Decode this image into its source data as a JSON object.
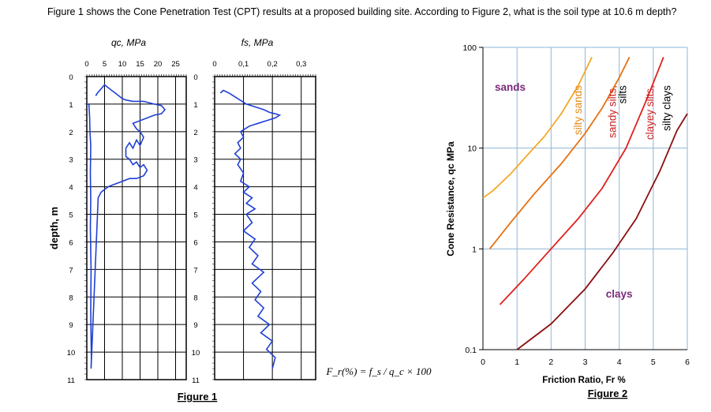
{
  "question": "Figure 1 shows the Cone Penetration Test (CPT) results at a proposed building site. According to Figure 2, what is the soil type at 10.6 m depth?",
  "chart_data": [
    {
      "type": "line",
      "caption": "Figure 1",
      "ylabel": "depth, m",
      "ylim": [
        11,
        0
      ],
      "y_ticks": [
        "0",
        "1",
        "2",
        "3",
        "4",
        "5",
        "6",
        "7",
        "8",
        "9",
        "10",
        "11"
      ],
      "panels": [
        {
          "name": "qc",
          "title": "q_c, MPa",
          "xlim": [
            0,
            28
          ],
          "x_ticks": [
            "0",
            "5",
            "10",
            "15",
            "20",
            "25"
          ],
          "x_tick_values": [
            0,
            5,
            10,
            15,
            20,
            25
          ],
          "profile": [
            [
              0,
              1
            ],
            [
              0.3,
              1
            ],
            [
              0.6,
              1
            ],
            [
              0.8,
              1.5
            ],
            [
              0.9,
              2
            ],
            [
              1.1,
              2.5
            ],
            [
              1.0,
              3.5
            ],
            [
              1.1,
              4.5
            ],
            [
              1.0,
              5.5
            ],
            [
              1.2,
              7
            ],
            [
              1.1,
              8.5
            ],
            [
              1.2,
              9.5
            ],
            [
              1.3,
              10.2
            ],
            [
              1.2,
              10.6
            ],
            [
              3.2,
              4.4
            ],
            [
              4,
              4.2
            ],
            [
              6,
              4
            ],
            [
              8,
              3.9
            ],
            [
              10,
              3.8
            ],
            [
              12,
              3.7
            ],
            [
              14,
              3.7
            ],
            [
              16,
              3.6
            ],
            [
              17,
              3.4
            ],
            [
              16,
              3.2
            ],
            [
              15,
              3.3
            ],
            [
              14,
              3.1
            ],
            [
              13,
              3.2
            ],
            [
              12,
              3.0
            ],
            [
              11,
              2.9
            ],
            [
              11,
              2.6
            ],
            [
              12,
              2.4
            ],
            [
              13,
              2.6
            ],
            [
              14,
              2.3
            ],
            [
              15,
              2.5
            ],
            [
              16,
              2.2
            ],
            [
              15,
              2.0
            ],
            [
              14,
              1.9
            ],
            [
              13,
              1.7
            ],
            [
              15,
              1.6
            ],
            [
              17,
              1.5
            ],
            [
              19,
              1.4
            ],
            [
              21,
              1.35
            ],
            [
              22,
              1.2
            ],
            [
              21,
              1.05
            ],
            [
              19,
              1.0
            ],
            [
              16,
              0.9
            ],
            [
              13,
              0.9
            ],
            [
              11,
              0.85
            ],
            [
              10,
              0.8
            ],
            [
              9,
              0.7
            ],
            [
              8,
              0.6
            ],
            [
              7,
              0.5
            ],
            [
              6,
              0.4
            ],
            [
              5,
              0.3
            ],
            [
              3,
              0.6
            ],
            [
              2.5,
              0.7
            ]
          ]
        },
        {
          "name": "fs",
          "title": "f_s, MPa",
          "xlim": [
            0,
            0.35
          ],
          "x_ticks": [
            "0",
            "0,1",
            "0,2",
            "0,3"
          ],
          "x_tick_values": [
            0,
            0.1,
            0.2,
            0.3
          ],
          "profile": [
            [
              0.02,
              0.6
            ],
            [
              0.03,
              0.5
            ],
            [
              0.05,
              0.6
            ],
            [
              0.08,
              0.8
            ],
            [
              0.11,
              1.0
            ],
            [
              0.14,
              1.1
            ],
            [
              0.17,
              1.2
            ],
            [
              0.19,
              1.3
            ],
            [
              0.21,
              1.35
            ],
            [
              0.225,
              1.4
            ],
            [
              0.21,
              1.5
            ],
            [
              0.18,
              1.6
            ],
            [
              0.15,
              1.7
            ],
            [
              0.12,
              1.8
            ],
            [
              0.09,
              2.0
            ],
            [
              0.1,
              2.2
            ],
            [
              0.08,
              2.4
            ],
            [
              0.09,
              2.6
            ],
            [
              0.07,
              2.8
            ],
            [
              0.09,
              3.0
            ],
            [
              0.08,
              3.2
            ],
            [
              0.1,
              3.5
            ],
            [
              0.09,
              3.8
            ],
            [
              0.12,
              4.0
            ],
            [
              0.1,
              4.2
            ],
            [
              0.13,
              4.4
            ],
            [
              0.11,
              4.6
            ],
            [
              0.14,
              4.8
            ],
            [
              0.11,
              5.0
            ],
            [
              0.13,
              5.3
            ],
            [
              0.1,
              5.6
            ],
            [
              0.14,
              5.9
            ],
            [
              0.12,
              6.2
            ],
            [
              0.15,
              6.5
            ],
            [
              0.13,
              6.8
            ],
            [
              0.17,
              7.1
            ],
            [
              0.15,
              7.3
            ],
            [
              0.13,
              7.5
            ],
            [
              0.16,
              7.8
            ],
            [
              0.14,
              8.1
            ],
            [
              0.17,
              8.4
            ],
            [
              0.15,
              8.7
            ],
            [
              0.19,
              9.0
            ],
            [
              0.16,
              9.3
            ],
            [
              0.2,
              9.6
            ],
            [
              0.18,
              9.9
            ],
            [
              0.21,
              10.2
            ],
            [
              0.2,
              10.6
            ]
          ]
        }
      ],
      "formula": "F_r(%) = f_s / q_c × 100"
    },
    {
      "type": "line",
      "caption": "Figure 2",
      "xlabel": "Friction Ratio, F_r %",
      "ylabel": "Cone Resistance, q_c MPa",
      "xlim": [
        0,
        6
      ],
      "ylim": [
        0.1,
        100
      ],
      "yscale": "log",
      "x_ticks": [
        "0",
        "1",
        "2",
        "3",
        "4",
        "5",
        "6"
      ],
      "x_tick_values": [
        0,
        1,
        2,
        3,
        4,
        5,
        6
      ],
      "y_ticks": [
        "0.1",
        "1",
        "10",
        "100"
      ],
      "y_tick_values": [
        0.1,
        1,
        10,
        100
      ],
      "grid": true,
      "zone_labels": [
        {
          "text": "sands",
          "x": 0.8,
          "y": 37,
          "rotation": 0,
          "color": "#7a2a7a"
        },
        {
          "text": "silty sands",
          "x": 2.9,
          "y": 42,
          "rotation": -90,
          "color": "#e58a1a"
        },
        {
          "text": "sandy silts,",
          "x": 3.9,
          "y": 42,
          "rotation": -90,
          "color": "#cc2222"
        },
        {
          "text": "silts",
          "x": 4.2,
          "y": 42,
          "rotation": -90,
          "color": "#000000"
        },
        {
          "text": "clays",
          "x": 4.0,
          "y": 0.33,
          "rotation": 0,
          "color": "#7a2a7a"
        },
        {
          "text": "clayey silts,",
          "x": 5.0,
          "y": 42,
          "rotation": -90,
          "color": "#cc2222"
        },
        {
          "text": "silty clays",
          "x": 5.5,
          "y": 42,
          "rotation": -90,
          "color": "#000000"
        }
      ],
      "series": [
        {
          "color": "#f5a623",
          "values": [
            [
              0,
              3.2
            ],
            [
              0.3,
              3.8
            ],
            [
              0.8,
              5.5
            ],
            [
              1.3,
              8.5
            ],
            [
              1.8,
              13
            ],
            [
              2.3,
              22
            ],
            [
              2.8,
              42
            ],
            [
              3.2,
              80
            ]
          ]
        },
        {
          "color": "#e8700f",
          "values": [
            [
              0.2,
              1
            ],
            [
              0.8,
              1.8
            ],
            [
              1.5,
              3.5
            ],
            [
              2.3,
              7
            ],
            [
              3,
              14
            ],
            [
              3.5,
              25
            ],
            [
              4,
              50
            ],
            [
              4.3,
              80
            ]
          ]
        },
        {
          "color": "#e0201a",
          "values": [
            [
              0.5,
              0.28
            ],
            [
              1.2,
              0.5
            ],
            [
              2,
              1
            ],
            [
              2.8,
              2
            ],
            [
              3.5,
              4
            ],
            [
              4.2,
              10
            ],
            [
              4.8,
              30
            ],
            [
              5.3,
              80
            ]
          ]
        },
        {
          "color": "#8b1010",
          "values": [
            [
              1,
              0.1
            ],
            [
              2,
              0.18
            ],
            [
              3,
              0.4
            ],
            [
              3.8,
              0.9
            ],
            [
              4.5,
              2
            ],
            [
              5.2,
              6
            ],
            [
              5.7,
              15
            ],
            [
              6,
              22
            ]
          ]
        }
      ]
    }
  ]
}
